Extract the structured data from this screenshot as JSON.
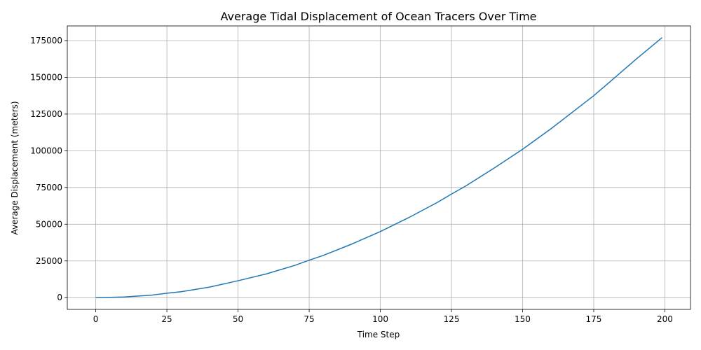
{
  "chart_data": {
    "type": "line",
    "title": "Average Tidal Displacement of Ocean Tracers Over Time",
    "xlabel": "Time Step",
    "ylabel": "Average Displacement (meters)",
    "xlim": [
      -10,
      209
    ],
    "ylim": [
      -8000,
      185000
    ],
    "grid": true,
    "xticks": [
      0,
      25,
      50,
      75,
      100,
      125,
      150,
      175,
      200
    ],
    "yticks": [
      0,
      25000,
      50000,
      75000,
      100000,
      125000,
      150000,
      175000
    ],
    "xtick_labels": [
      "0",
      "25",
      "50",
      "75",
      "100",
      "125",
      "150",
      "175",
      "200"
    ],
    "ytick_labels": [
      "0",
      "25000",
      "50000",
      "75000",
      "100000",
      "125000",
      "150000",
      "175000"
    ],
    "series": [
      {
        "color": "#1f77b4",
        "x": [
          0,
          10,
          20,
          25,
          30,
          40,
          50,
          60,
          70,
          75,
          80,
          90,
          100,
          110,
          120,
          125,
          130,
          140,
          150,
          160,
          170,
          175,
          180,
          190,
          199
        ],
        "y": [
          0,
          450,
          1800,
          3000,
          4050,
          7200,
          11500,
          16200,
          22000,
          25500,
          28800,
          36500,
          45000,
          54500,
          64800,
          70500,
          76000,
          88200,
          101000,
          115000,
          130000,
          137500,
          145800,
          162500,
          177000
        ]
      }
    ]
  }
}
